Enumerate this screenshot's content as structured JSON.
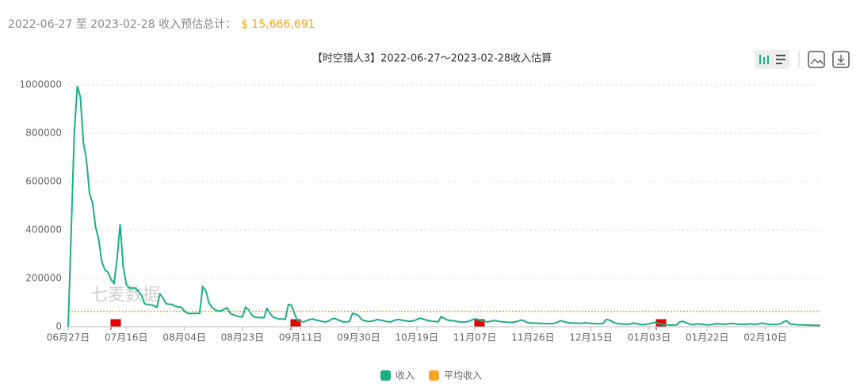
{
  "header": {
    "summary_label": "2022-06-27 至 2023-02-28 收入预估总计：",
    "total": "$ 15,666,691"
  },
  "chart_data": {
    "type": "line",
    "title": "【时空猎人3】2022-06-27～2023-02-28收入估算",
    "watermark": "七麦数据",
    "categories": [
      "06月27日",
      null,
      null,
      null,
      null,
      null,
      null,
      null,
      null,
      null,
      null,
      null,
      null,
      null,
      null,
      null,
      null,
      null,
      null,
      "07月16日",
      null,
      null,
      null,
      null,
      null,
      null,
      null,
      null,
      null,
      null,
      null,
      null,
      null,
      null,
      null,
      null,
      null,
      null,
      "08月04日",
      null,
      null,
      null,
      null,
      null,
      null,
      null,
      null,
      null,
      null,
      null,
      null,
      null,
      null,
      null,
      null,
      null,
      null,
      "08月23日",
      null,
      null,
      null,
      null,
      null,
      null,
      null,
      null,
      null,
      null,
      null,
      null,
      null,
      null,
      null,
      null,
      null,
      null,
      "09月11日",
      null,
      null,
      null,
      null,
      null,
      null,
      null,
      null,
      null,
      null,
      null,
      null,
      null,
      null,
      null,
      null,
      null,
      null,
      "09月30日",
      null,
      null,
      null,
      null,
      null,
      null,
      null,
      null,
      null,
      null,
      null,
      null,
      null,
      null,
      null,
      null,
      null,
      null,
      "10月19日",
      null,
      null,
      null,
      null,
      null,
      null,
      null,
      null,
      null,
      null,
      null,
      null,
      null,
      null,
      null,
      null,
      null,
      null,
      "11月07日",
      null,
      null,
      null,
      null,
      null,
      null,
      null,
      null,
      null,
      null,
      null,
      null,
      null,
      null,
      null,
      null,
      null,
      null,
      "11月26日",
      null,
      null,
      null,
      null,
      null,
      null,
      null,
      null,
      null,
      null,
      null,
      null,
      null,
      null,
      null,
      null,
      null,
      null,
      "12月15日",
      null,
      null,
      null,
      null,
      null,
      null,
      null,
      null,
      null,
      null,
      null,
      null,
      null,
      null,
      null,
      null,
      null,
      null,
      "01月03日",
      null,
      null,
      null,
      null,
      null,
      null,
      null,
      null,
      null,
      null,
      null,
      null,
      null,
      null,
      null,
      null,
      null,
      null,
      "01月22日",
      null,
      null,
      null,
      null,
      null,
      null,
      null,
      null,
      null,
      null,
      null,
      null,
      null,
      null,
      null,
      null,
      null,
      null,
      "02月10日",
      null,
      null,
      null,
      null,
      null,
      null,
      null,
      null,
      null,
      null,
      null,
      null,
      null,
      null,
      null,
      null,
      null,
      null
    ],
    "series": [
      {
        "name": "收入",
        "color": "#1aaf83",
        "values": [
          0,
          400000,
          800000,
          995000,
          950000,
          760000,
          690000,
          550000,
          510000,
          410000,
          360000,
          270000,
          235000,
          225000,
          195000,
          180000,
          280000,
          425000,
          250000,
          175000,
          160000,
          160000,
          160000,
          145000,
          130000,
          95000,
          92000,
          90000,
          88000,
          80000,
          135000,
          120000,
          95000,
          93000,
          92000,
          85000,
          82000,
          80000,
          65000,
          55000,
          55000,
          55000,
          55000,
          55000,
          165000,
          150000,
          100000,
          80000,
          70000,
          65000,
          65000,
          72000,
          78000,
          55000,
          50000,
          45000,
          42000,
          40000,
          80000,
          70000,
          50000,
          40000,
          38000,
          38000,
          37000,
          75000,
          55000,
          40000,
          35000,
          32000,
          32000,
          30000,
          92000,
          90000,
          55000,
          25000,
          22000,
          20000,
          25000,
          30000,
          32000,
          28000,
          25000,
          22000,
          20000,
          22000,
          30000,
          35000,
          30000,
          25000,
          20000,
          20000,
          22000,
          55000,
          52000,
          45000,
          30000,
          25000,
          22000,
          22000,
          25000,
          30000,
          28000,
          25000,
          22000,
          20000,
          22000,
          28000,
          30000,
          28000,
          25000,
          24000,
          22000,
          25000,
          30000,
          35000,
          32000,
          28000,
          25000,
          22000,
          22000,
          20000,
          42000,
          35000,
          28000,
          25000,
          25000,
          22000,
          20000,
          20000,
          20000,
          22000,
          28000,
          32000,
          30000,
          25000,
          22000,
          20000,
          22000,
          25000,
          25000,
          22000,
          20000,
          20000,
          18000,
          18000,
          20000,
          22000,
          28000,
          25000,
          18000,
          15000,
          15000,
          15000,
          14000,
          14000,
          13000,
          13000,
          12000,
          14000,
          18000,
          25000,
          22000,
          18000,
          16000,
          15000,
          15000,
          14000,
          14000,
          16000,
          15000,
          14000,
          13000,
          12000,
          12000,
          14000,
          30000,
          28000,
          20000,
          15000,
          12000,
          12000,
          10000,
          10000,
          12000,
          15000,
          12000,
          10000,
          8000,
          10000,
          12000,
          15000,
          18000,
          15000,
          10000,
          8000,
          8000,
          7000,
          7000,
          8000,
          20000,
          22000,
          18000,
          12000,
          8000,
          10000,
          12000,
          10000,
          9000,
          8000,
          8000,
          10000,
          12000,
          12000,
          10000,
          10000,
          12000,
          14000,
          12000,
          10000,
          10000,
          9000,
          10000,
          12000,
          10000,
          10000,
          12000,
          15000,
          12000,
          10000,
          9000,
          9000,
          10000,
          12000,
          20000,
          25000,
          12000,
          10000,
          9000,
          8000,
          8000,
          7000,
          7000,
          6000,
          6000,
          6000,
          6000
        ]
      }
    ],
    "average": {
      "name": "平均收入",
      "color": "#f5a623",
      "value": 63428
    },
    "ylim": [
      0,
      1000000
    ],
    "yticks": [
      0,
      200000,
      400000,
      600000,
      800000,
      1000000
    ],
    "grid": true
  }
}
